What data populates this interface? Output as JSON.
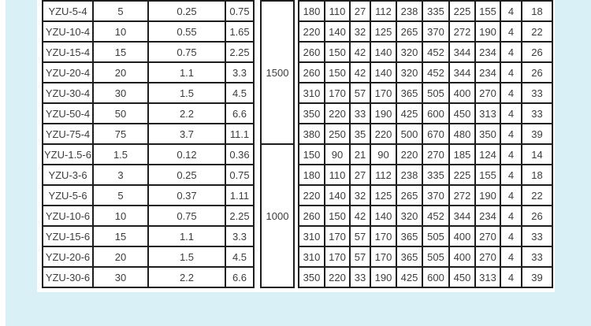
{
  "page": {
    "background_color": "#d9f0f6",
    "panel_color": "#ffffff",
    "border_color": "#1d1d1d",
    "text_color": "#3c3c3c"
  },
  "chart_data": {
    "type": "table",
    "groups": [
      {
        "speed": "1500",
        "rows": [
          {
            "model": "YZU-5-4",
            "left": [
              "5",
              "0.25",
              "0.75"
            ],
            "right": [
              "180",
              "110",
              "27",
              "112",
              "238",
              "335",
              "225",
              "155",
              "4",
              "18"
            ]
          },
          {
            "model": "YZU-10-4",
            "left": [
              "10",
              "0.55",
              "1.65"
            ],
            "right": [
              "220",
              "140",
              "32",
              "125",
              "265",
              "370",
              "272",
              "190",
              "4",
              "22"
            ]
          },
          {
            "model": "YZU-15-4",
            "left": [
              "15",
              "0.75",
              "2.25"
            ],
            "right": [
              "260",
              "150",
              "42",
              "140",
              "320",
              "452",
              "344",
              "234",
              "4",
              "26"
            ]
          },
          {
            "model": "YZU-20-4",
            "left": [
              "20",
              "1.1",
              "3.3"
            ],
            "right": [
              "260",
              "150",
              "42",
              "140",
              "320",
              "452",
              "344",
              "234",
              "4",
              "26"
            ]
          },
          {
            "model": "YZU-30-4",
            "left": [
              "30",
              "1.5",
              "4.5"
            ],
            "right": [
              "310",
              "170",
              "57",
              "170",
              "365",
              "505",
              "400",
              "270",
              "4",
              "33"
            ]
          },
          {
            "model": "YZU-50-4",
            "left": [
              "50",
              "2.2",
              "6.6"
            ],
            "right": [
              "350",
              "220",
              "33",
              "190",
              "425",
              "600",
              "450",
              "313",
              "4",
              "33"
            ]
          },
          {
            "model": "YZU-75-4",
            "left": [
              "75",
              "3.7",
              "11.1"
            ],
            "right": [
              "380",
              "250",
              "35",
              "220",
              "500",
              "670",
              "480",
              "350",
              "4",
              "39"
            ]
          }
        ]
      },
      {
        "speed": "1000",
        "rows": [
          {
            "model": "YZU-1.5-6",
            "left": [
              "1.5",
              "0.12",
              "0.36"
            ],
            "right": [
              "150",
              "90",
              "21",
              "90",
              "220",
              "270",
              "185",
              "124",
              "4",
              "14"
            ]
          },
          {
            "model": "YZU-3-6",
            "left": [
              "3",
              "0.25",
              "0.75"
            ],
            "right": [
              "180",
              "110",
              "27",
              "112",
              "238",
              "335",
              "225",
              "155",
              "4",
              "18"
            ]
          },
          {
            "model": "YZU-5-6",
            "left": [
              "5",
              "0.37",
              "1.11"
            ],
            "right": [
              "220",
              "140",
              "32",
              "125",
              "265",
              "370",
              "272",
              "190",
              "4",
              "22"
            ]
          },
          {
            "model": "YZU-10-6",
            "left": [
              "10",
              "0.75",
              "2.25"
            ],
            "right": [
              "260",
              "150",
              "42",
              "140",
              "320",
              "452",
              "344",
              "234",
              "4",
              "26"
            ]
          },
          {
            "model": "YZU-15-6",
            "left": [
              "15",
              "1.1",
              "3.3"
            ],
            "right": [
              "310",
              "170",
              "57",
              "170",
              "365",
              "505",
              "400",
              "270",
              "4",
              "33"
            ]
          },
          {
            "model": "YZU-20-6",
            "left": [
              "20",
              "1.5",
              "4.5"
            ],
            "right": [
              "310",
              "170",
              "57",
              "170",
              "365",
              "505",
              "400",
              "270",
              "4",
              "33"
            ]
          },
          {
            "model": "YZU-30-6",
            "left": [
              "30",
              "2.2",
              "6.6"
            ],
            "right": [
              "350",
              "220",
              "33",
              "190",
              "425",
              "600",
              "450",
              "313",
              "4",
              "39"
            ]
          }
        ]
      }
    ]
  }
}
